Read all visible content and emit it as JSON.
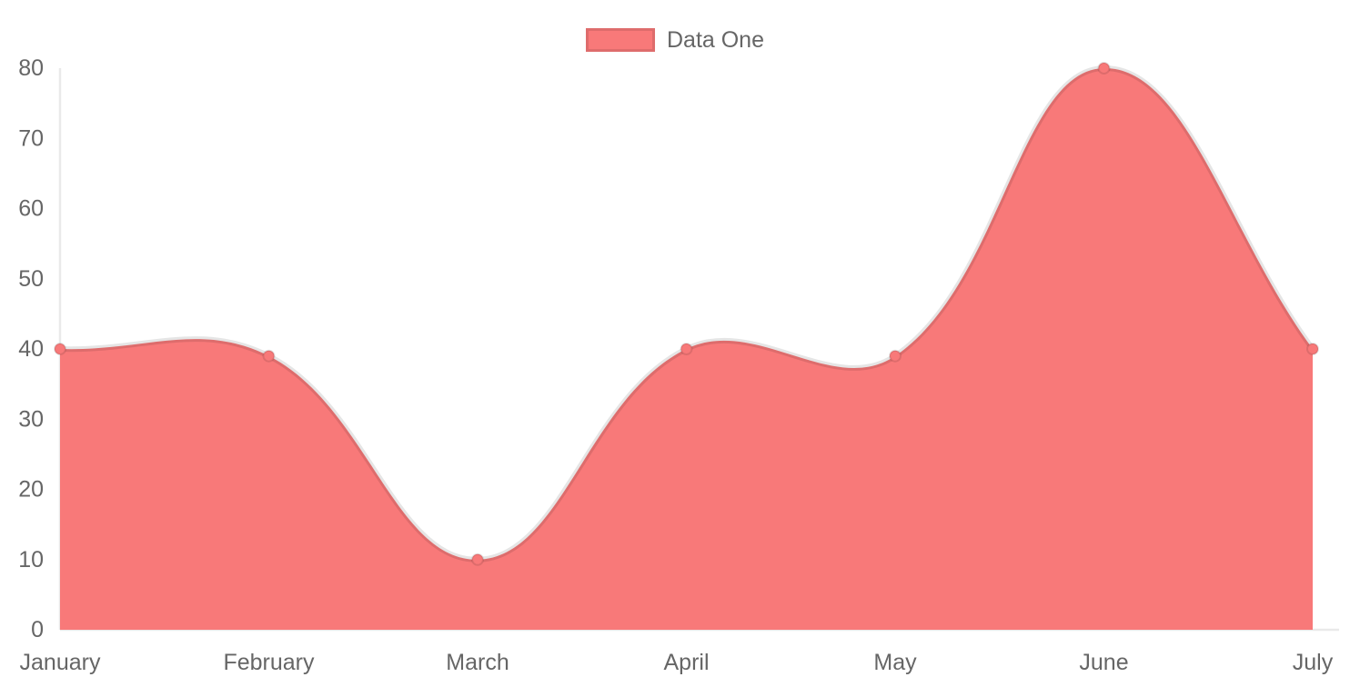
{
  "chart_data": {
    "type": "area",
    "title": "",
    "categories": [
      "January",
      "February",
      "March",
      "April",
      "May",
      "June",
      "July"
    ],
    "series": [
      {
        "name": "Data One",
        "values": [
          40,
          39,
          10,
          40,
          39,
          80,
          40
        ]
      }
    ],
    "xlabel": "",
    "ylabel": "",
    "ylim": [
      0,
      80
    ],
    "y_ticks": [
      0,
      10,
      20,
      30,
      40,
      50,
      60,
      70,
      80
    ],
    "grid": false,
    "smooth": true,
    "line_tension": 0.4,
    "legend_position": "top",
    "colors": {
      "series_fill": "#f87979",
      "series_line": "rgba(0,0,0,0.1)",
      "point_fill": "#f87979",
      "point_border": "rgba(0,0,0,0.1)",
      "axis_line": "#e9e9e9",
      "tick_text": "#666666"
    }
  }
}
